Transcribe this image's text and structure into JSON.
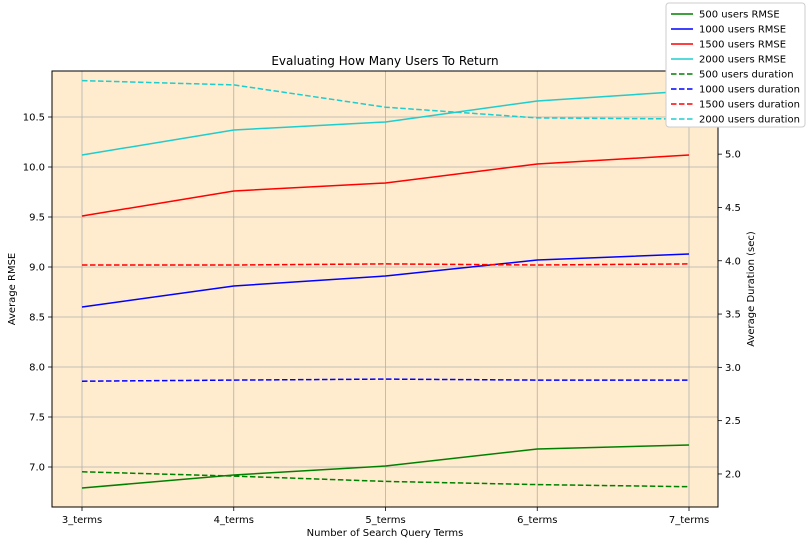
{
  "chart_data": {
    "type": "line",
    "title": "Evaluating How Many Users To Return",
    "xlabel": "Number of Search Query Terms",
    "ylabel": "Average RMSE",
    "y2label": "Average Duration (sec)",
    "categories": [
      "3_terms",
      "4_terms",
      "5_terms",
      "6_terms",
      "7_terms"
    ],
    "ylim": [
      6.6,
      10.96
    ],
    "y2lim": [
      1.69,
      5.78
    ],
    "yticks": [
      "7.0",
      "7.5",
      "8.0",
      "8.5",
      "9.0",
      "9.5",
      "10.0",
      "10.5"
    ],
    "y2ticks": [
      "2.0",
      "2.5",
      "3.0",
      "3.5",
      "4.0",
      "4.5",
      "5.0",
      "5.5"
    ],
    "grid": true,
    "background": "#ffebcd",
    "legend_position": "top-right",
    "series": [
      {
        "name": "500 users RMSE",
        "axis": "left",
        "style": "solid",
        "color": "#008000",
        "values": [
          6.79,
          6.92,
          7.01,
          7.18,
          7.22
        ]
      },
      {
        "name": "1000 users RMSE",
        "axis": "left",
        "style": "solid",
        "color": "#0000ff",
        "values": [
          8.6,
          8.81,
          8.91,
          9.07,
          9.13
        ]
      },
      {
        "name": "1500 users RMSE",
        "axis": "left",
        "style": "solid",
        "color": "#ff0000",
        "values": [
          9.51,
          9.76,
          9.84,
          10.03,
          10.12
        ]
      },
      {
        "name": "2000 users RMSE",
        "axis": "left",
        "style": "solid",
        "color": "#1fcdcd",
        "values": [
          10.12,
          10.37,
          10.45,
          10.66,
          10.76
        ]
      },
      {
        "name": "500 users duration",
        "axis": "right",
        "style": "dashed",
        "color": "#008000",
        "values": [
          2.02,
          1.98,
          1.93,
          1.9,
          1.88
        ]
      },
      {
        "name": "1000 users duration",
        "axis": "right",
        "style": "dashed",
        "color": "#0000ff",
        "values": [
          2.87,
          2.88,
          2.89,
          2.88,
          2.88
        ]
      },
      {
        "name": "1500 users duration",
        "axis": "right",
        "style": "dashed",
        "color": "#ff0000",
        "values": [
          3.96,
          3.96,
          3.97,
          3.96,
          3.97
        ]
      },
      {
        "name": "2000 users duration",
        "axis": "right",
        "style": "dashed",
        "color": "#1fcdcd",
        "values": [
          5.69,
          5.65,
          5.44,
          5.34,
          5.33
        ]
      }
    ]
  }
}
